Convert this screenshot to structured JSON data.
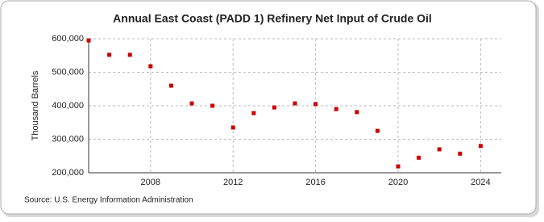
{
  "chart_data": {
    "type": "scatter",
    "title": "Annual East Coast (PADD 1) Refinery Net Input of Crude Oil",
    "y_label": "Thousand Barrels",
    "source": "Source: U.S. Energy Information Administration",
    "x": [
      2005,
      2006,
      2007,
      2008,
      2009,
      2010,
      2011,
      2012,
      2013,
      2014,
      2015,
      2016,
      2017,
      2018,
      2019,
      2020,
      2021,
      2022,
      2023,
      2024
    ],
    "series": [
      {
        "name": "East Coast (PADD 1) Refinery Net Input of Crude Oil",
        "color": "#cc0000",
        "values": [
          595000,
          552000,
          552000,
          518000,
          460000,
          407000,
          400000,
          335000,
          378000,
          395000,
          407000,
          405000,
          390000,
          381000,
          325000,
          219000,
          245000,
          270000,
          257000,
          280000
        ]
      }
    ],
    "xlim": [
      2005,
      2025
    ],
    "xticks": [
      2008,
      2012,
      2016,
      2020,
      2024
    ],
    "ylim": [
      200000,
      600000
    ],
    "yticks": [
      {
        "value": 200000,
        "label": "200,000"
      },
      {
        "value": 300000,
        "label": "300,000"
      },
      {
        "value": 400000,
        "label": "400,000"
      },
      {
        "value": 500000,
        "label": "500,000"
      },
      {
        "value": 600000,
        "label": "600,000"
      }
    ],
    "grid": true
  }
}
